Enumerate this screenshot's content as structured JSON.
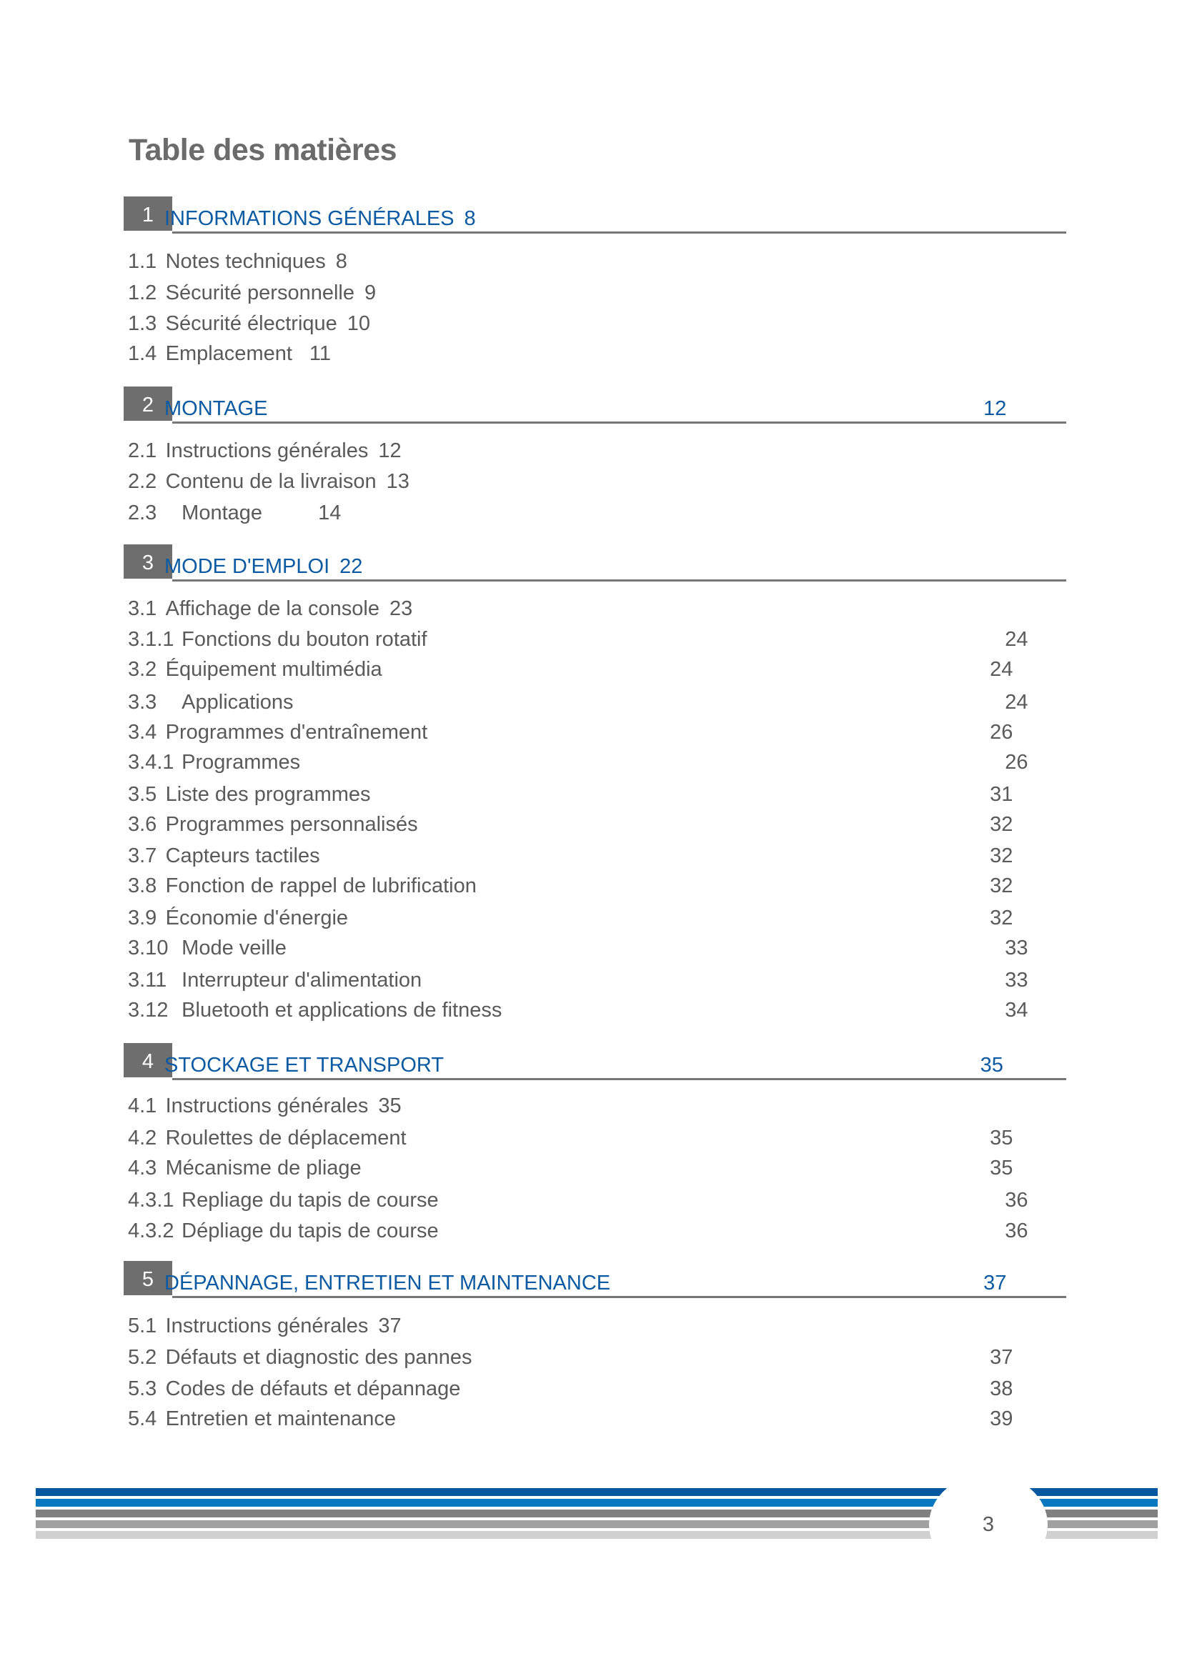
{
  "title": "Table des matières",
  "page_number": "3",
  "colors": {
    "section_blue": "#0b5aa2",
    "section_box": "#6e6e6e",
    "stripes": [
      "#0557a0",
      "#0a78c0",
      "#808080",
      "#a0a0a0",
      "#d0d0d0"
    ]
  },
  "sections": [
    {
      "num": "1",
      "title": "INFORMATIONS GÉNÉRALES",
      "page": "8",
      "items": [
        {
          "num": "1.1",
          "title": "Notes techniques",
          "page": "8"
        },
        {
          "num": "1.2",
          "title": "Sécurité personnelle",
          "page": "9"
        },
        {
          "num": "1.3",
          "title": "Sécurité électrique",
          "page": "10"
        },
        {
          "num": "1.4",
          "title": "Emplacement",
          "page": "11"
        }
      ]
    },
    {
      "num": "2",
      "title": "MONTAGE",
      "page": "12",
      "items": [
        {
          "num": "2.1",
          "title": "Instructions générales",
          "page": "12"
        },
        {
          "num": "2.2",
          "title": "Contenu de la livraison",
          "page": "13"
        },
        {
          "num": "2.3",
          "title": "Montage",
          "page": "14"
        }
      ]
    },
    {
      "num": "3",
      "title": "MODE D'EMPLOI",
      "page": "22",
      "items": [
        {
          "num": "3.1",
          "title": "Affichage de la console",
          "page": "23"
        },
        {
          "num": "3.1.1",
          "title": "Fonctions du bouton rotatif",
          "page": "24"
        },
        {
          "num": "3.2",
          "title": "Équipement multimédia",
          "page": "24"
        },
        {
          "num": "3.3",
          "title": "Applications",
          "page": "24"
        },
        {
          "num": "3.4",
          "title": "Programmes d'entraînement",
          "page": "26"
        },
        {
          "num": "3.4.1",
          "title": "Programmes",
          "page": "26"
        },
        {
          "num": "3.5",
          "title": "Liste des programmes",
          "page": "31"
        },
        {
          "num": "3.6",
          "title": "Programmes personnalisés",
          "page": "32"
        },
        {
          "num": "3.7",
          "title": "Capteurs tactiles",
          "page": "32"
        },
        {
          "num": "3.8",
          "title": "Fonction de rappel de lubrification",
          "page": "32"
        },
        {
          "num": "3.9",
          "title": "Économie d'énergie",
          "page": "32"
        },
        {
          "num": "3.10",
          "title": "Mode veille",
          "page": "33"
        },
        {
          "num": "3.11",
          "title": "Interrupteur d'alimentation",
          "page": "33"
        },
        {
          "num": "3.12",
          "title": "Bluetooth et applications de fitness",
          "page": "34"
        }
      ]
    },
    {
      "num": "4",
      "title": "STOCKAGE ET TRANSPORT",
      "page": "35",
      "items": [
        {
          "num": "4.1",
          "title": "Instructions générales",
          "page": "35"
        },
        {
          "num": "4.2",
          "title": "Roulettes de déplacement",
          "page": "35"
        },
        {
          "num": "4.3",
          "title": "Mécanisme de pliage",
          "page": "35"
        },
        {
          "num": "4.3.1",
          "title": "Repliage du tapis de course",
          "page": "36"
        },
        {
          "num": "4.3.2",
          "title": "Dépliage du tapis de course",
          "page": "36"
        }
      ]
    },
    {
      "num": "5",
      "title": "DÉPANNAGE, ENTRETIEN ET MAINTENANCE",
      "page": "37",
      "items": [
        {
          "num": "5.1",
          "title": "Instructions générales",
          "page": "37"
        },
        {
          "num": "5.2",
          "title": "Défauts et diagnostic des pannes",
          "page": "37"
        },
        {
          "num": "5.3",
          "title": "Codes de défauts et dépannage",
          "page": "38"
        },
        {
          "num": "5.4",
          "title": "Entretien et maintenance",
          "page": "39"
        }
      ]
    }
  ]
}
